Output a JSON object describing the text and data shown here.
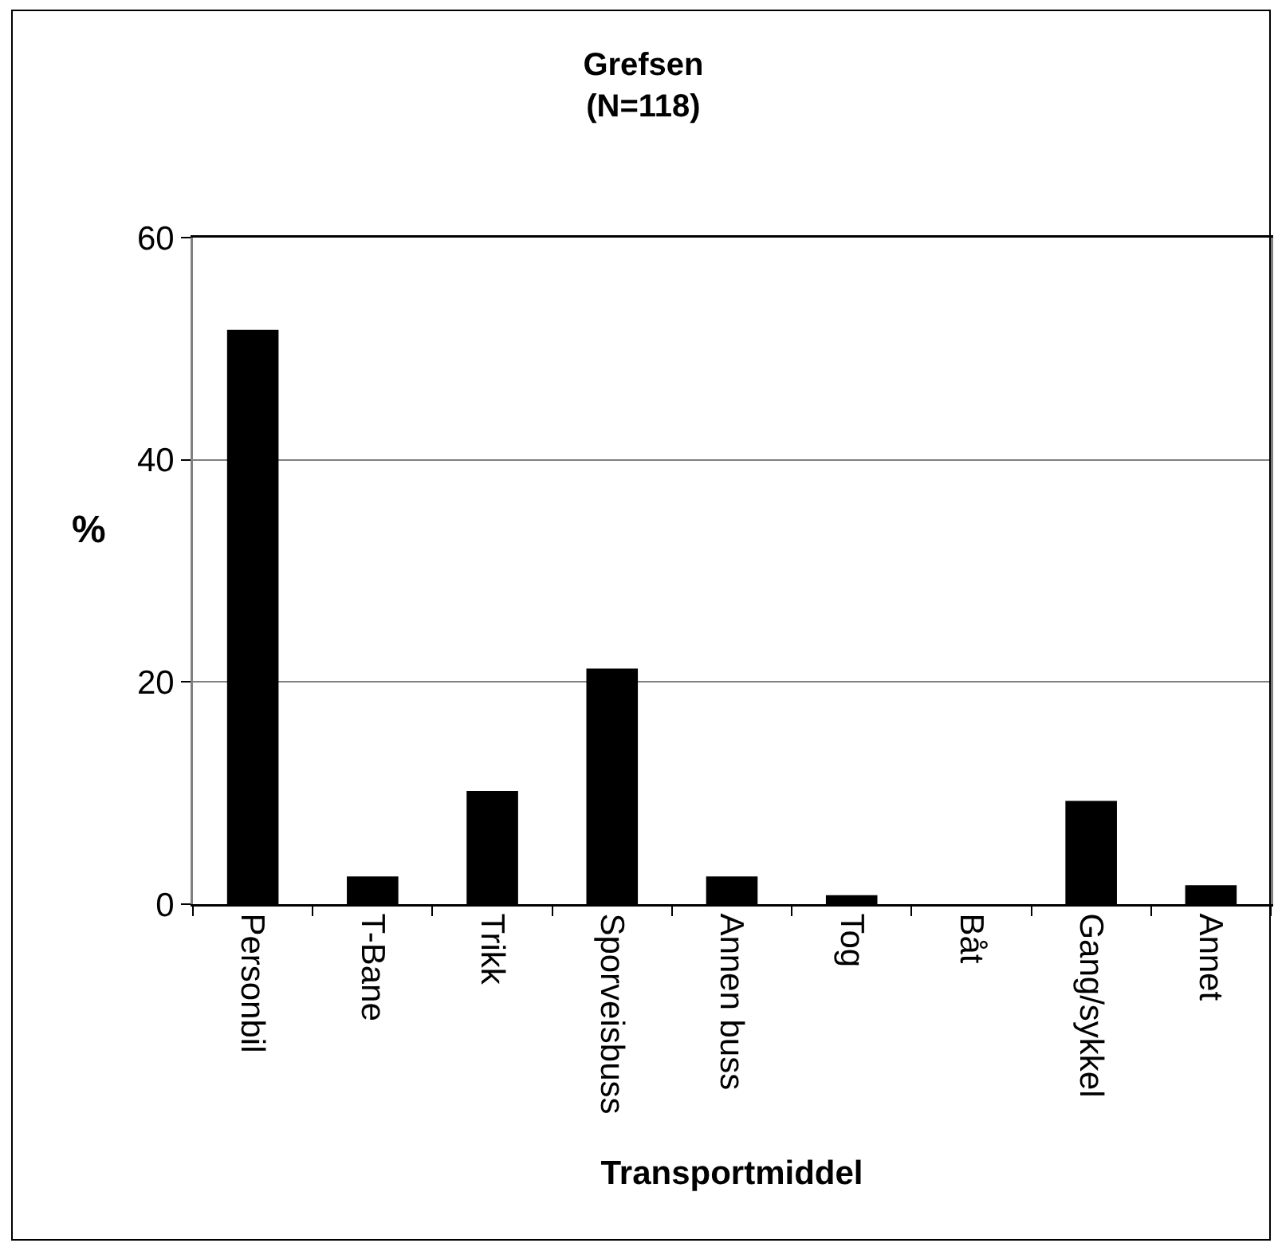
{
  "chart_data": {
    "type": "bar",
    "title": "Grefsen",
    "subtitle": "(N=118)",
    "xlabel": "Transportmiddel",
    "ylabel": "%",
    "categories": [
      "Personbil",
      "T-Bane",
      "Trikk",
      "Sporveisbuss",
      "Annen buss",
      "Tog",
      "Båt",
      "Gang/sykkel",
      "Annet"
    ],
    "values": [
      51.7,
      2.5,
      10.2,
      21.2,
      2.5,
      0.8,
      0,
      9.3,
      1.7
    ],
    "color": "#000000",
    "ylim": [
      0,
      60
    ],
    "yticks": [
      0,
      20,
      40,
      60
    ],
    "grid": "y"
  }
}
